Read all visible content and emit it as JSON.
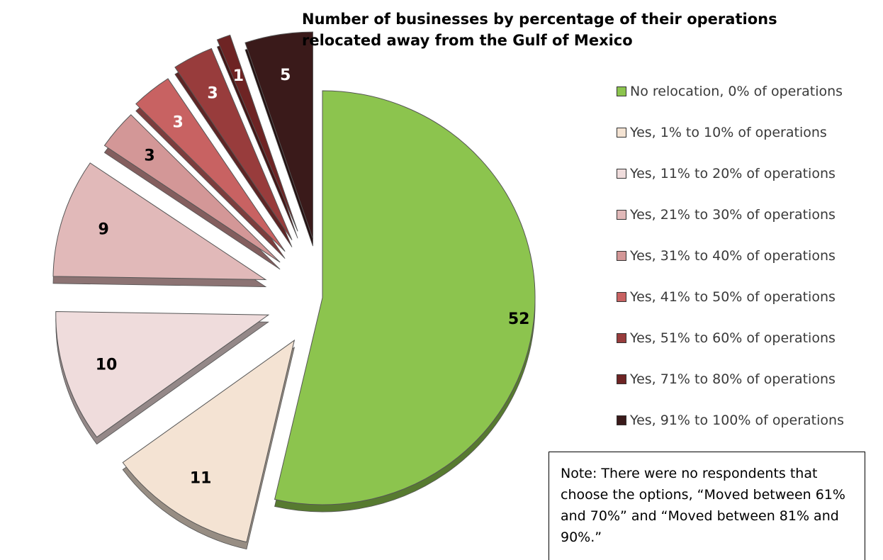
{
  "chart_data": {
    "type": "pie",
    "title": "Number of businesses by percentage of their operations relocated away from the Gulf of Mexico",
    "legend_position": "right",
    "exploded": true,
    "three_d": true,
    "slices": [
      {
        "label": "No relocation, 0% of operations",
        "value": 52,
        "color": "#8cc44e"
      },
      {
        "label": "Yes, 1% to 10% of operations",
        "value": 11,
        "color": "#f4e3d3"
      },
      {
        "label": "Yes, 11% to 20% of operations",
        "value": 10,
        "color": "#efdcdc"
      },
      {
        "label": "Yes, 21% to 30% of operations",
        "value": 9,
        "color": "#e1b9b9"
      },
      {
        "label": "Yes, 31% to 40% of operations",
        "value": 3,
        "color": "#d39797"
      },
      {
        "label": "Yes, 41% to 50% of operations",
        "value": 3,
        "color": "#c86262"
      },
      {
        "label": "Yes, 51% to 60% of operations",
        "value": 3,
        "color": "#983c3c"
      },
      {
        "label": "Yes, 71% to 80% of operations",
        "value": 1,
        "color": "#6e2424"
      },
      {
        "label": "Yes, 91% to 100% of operations",
        "value": 5,
        "color": "#3a1a1a"
      }
    ]
  },
  "note": "Note: There were no respondents that choose the options, “Moved between 61% and 70%” and “Moved between 81% and 90%.”"
}
